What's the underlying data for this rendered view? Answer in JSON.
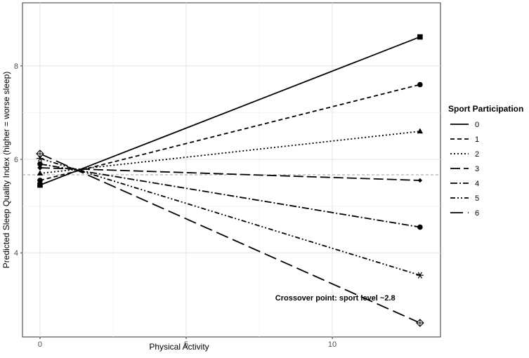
{
  "chart_data": {
    "type": "line",
    "title": "",
    "xlabel": "Physical Activity",
    "ylabel": "Predicted Sleep Quality Index (higher = worse sleep)",
    "xlim": [
      -0.6,
      13.7
    ],
    "ylim": [
      2.2,
      9.35
    ],
    "x_ticks": [
      0,
      5,
      10
    ],
    "x_tick_labels": [
      "0",
      "5",
      "10"
    ],
    "y_ticks": [
      4,
      6,
      8
    ],
    "y_tick_labels": [
      "4",
      "6",
      "8"
    ],
    "grid": true,
    "x": [
      0,
      13
    ],
    "legend": {
      "title": "Sport Participation",
      "position": "right"
    },
    "reference_line": {
      "y": 5.67,
      "style": "dashed",
      "color": "#9e9e9e"
    },
    "annotation": {
      "text": "Crossover point: sport level ~2.8",
      "x": 10.1,
      "y": 2.98
    },
    "series": [
      {
        "name": "0",
        "values": [
          5.45,
          8.62
        ],
        "dash": "",
        "marker": "square"
      },
      {
        "name": "1",
        "values": [
          5.55,
          7.6
        ],
        "dash": "6,4",
        "marker": "circle"
      },
      {
        "name": "2",
        "values": [
          5.7,
          6.6
        ],
        "dash": "2,3",
        "marker": "triangle"
      },
      {
        "name": "3",
        "values": [
          5.82,
          5.55
        ],
        "dash": "14,5",
        "marker": "diamond"
      },
      {
        "name": "4",
        "values": [
          5.9,
          4.55
        ],
        "dash": "10,3,2,3",
        "marker": "circle"
      },
      {
        "name": "5",
        "values": [
          6.02,
          3.52
        ],
        "dash": "7,3,2,3,2,3",
        "marker": "asterisk"
      },
      {
        "name": "6",
        "values": [
          6.12,
          2.5
        ],
        "dash": "18,7",
        "marker": "crossed-diamond"
      }
    ]
  }
}
